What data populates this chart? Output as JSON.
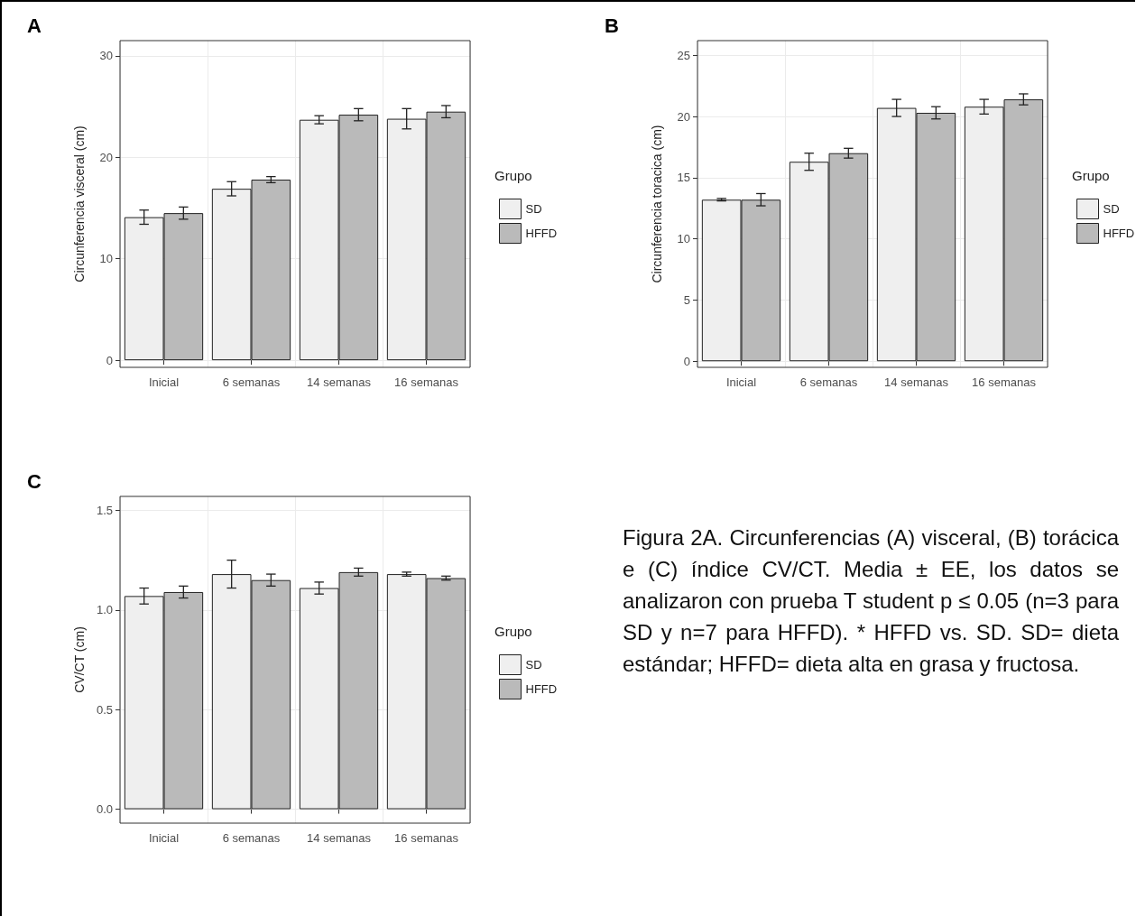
{
  "chart_data": [
    {
      "type": "bar",
      "title": "A",
      "ylabel": "Circunferencia visceral (cm)",
      "legend_title": "Grupo",
      "legend": "right",
      "grid": true,
      "categories": [
        "Inicial",
        "6 semanas",
        "14 semanas",
        "16 semanas"
      ],
      "ylim": [
        -0.7,
        31.5
      ],
      "yticks": [
        0,
        10,
        20,
        30
      ],
      "series": [
        {
          "name": "SD",
          "color": "#efefef",
          "values": [
            14.1,
            16.9,
            23.7,
            23.8
          ],
          "errors": [
            0.7,
            0.7,
            0.4,
            1.0
          ]
        },
        {
          "name": "HFFD",
          "color": "#bababa",
          "values": [
            14.5,
            17.8,
            24.2,
            24.5
          ],
          "errors": [
            0.6,
            0.3,
            0.6,
            0.6
          ]
        }
      ]
    },
    {
      "type": "bar",
      "title": "B",
      "ylabel": "Circunferencia toracica (cm)",
      "legend_title": "Grupo",
      "legend": "right",
      "grid": true,
      "categories": [
        "Inicial",
        "6 semanas",
        "14 semanas",
        "16 semanas"
      ],
      "ylim": [
        -0.5,
        26.2
      ],
      "yticks": [
        0,
        5,
        10,
        15,
        20,
        25
      ],
      "series": [
        {
          "name": "SD",
          "color": "#efefef",
          "values": [
            13.2,
            16.3,
            20.7,
            20.8
          ],
          "errors": [
            0.1,
            0.7,
            0.7,
            0.6
          ]
        },
        {
          "name": "HFFD",
          "color": "#bababa",
          "values": [
            13.2,
            17.0,
            20.3,
            21.4
          ],
          "errors": [
            0.5,
            0.4,
            0.5,
            0.45
          ]
        }
      ]
    },
    {
      "type": "bar",
      "title": "C",
      "ylabel": "CV/CT (cm)",
      "legend_title": "Grupo",
      "legend": "right",
      "grid": true,
      "categories": [
        "Inicial",
        "6 semanas",
        "14 semanas",
        "16 semanas"
      ],
      "ylim": [
        -0.07,
        1.57
      ],
      "yticks": [
        {
          "value": 0,
          "label": "0.0"
        },
        {
          "value": 0.5,
          "label": "0.5"
        },
        {
          "value": 1,
          "label": "1.0"
        },
        {
          "value": 1.5,
          "label": "1.5"
        }
      ],
      "series": [
        {
          "name": "SD",
          "color": "#efefef",
          "values": [
            1.07,
            1.18,
            1.11,
            1.18
          ],
          "errors": [
            0.04,
            0.07,
            0.03,
            0.01
          ]
        },
        {
          "name": "HFFD",
          "color": "#bababa",
          "values": [
            1.09,
            1.15,
            1.19,
            1.16
          ],
          "errors": [
            0.03,
            0.03,
            0.02,
            0.01
          ]
        }
      ],
      "annotations": [
        "Figura 2A. Circunferencias (A) visceral, (B) torácica e (C) índice CV/CT. Media ± EE, los datos se analizaron con prueba T student p ≤ 0.05 (n=3 para SD y n=7 para HFFD). * HFFD vs. SD. SD= dieta estándar; HFFD= dieta alta en grasa y fructosa."
      ]
    }
  ]
}
